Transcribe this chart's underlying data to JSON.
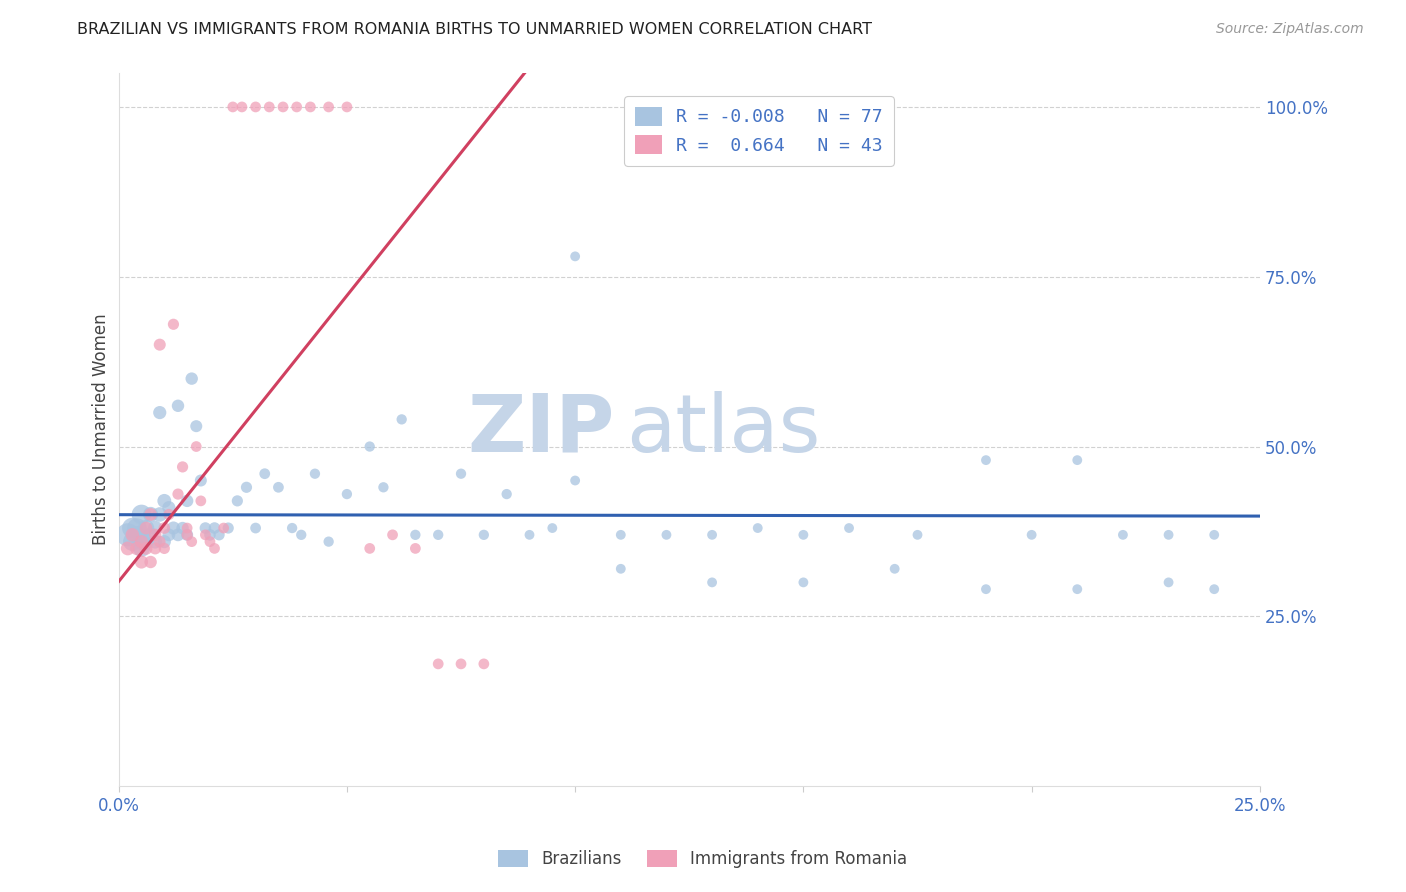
{
  "title": "BRAZILIAN VS IMMIGRANTS FROM ROMANIA BIRTHS TO UNMARRIED WOMEN CORRELATION CHART",
  "source": "Source: ZipAtlas.com",
  "ylabel": "Births to Unmarried Women",
  "xlim": [
    0.0,
    0.25
  ],
  "ylim": [
    0.0,
    1.05
  ],
  "y_ticks": [
    0.25,
    0.5,
    0.75,
    1.0
  ],
  "x_ticks": [
    0.0,
    0.05,
    0.1,
    0.15,
    0.2,
    0.25
  ],
  "legend_line1": "R = -0.008   N = 77",
  "legend_line2": "R =  0.664   N = 43",
  "blue_color": "#a8c4e0",
  "pink_color": "#f0a0b8",
  "line_blue_color": "#3060b0",
  "line_pink_color": "#d04060",
  "watermark_zip_color": "#c5d5e8",
  "watermark_atlas_color": "#c5d5e8",
  "tick_color": "#4472c4",
  "grid_color": "#cccccc",
  "title_color": "#222222",
  "ylabel_color": "#444444",
  "source_color": "#999999",
  "brazil_label": "Brazilians",
  "romania_label": "Immigrants from Romania",
  "brazil_N": 77,
  "romania_N": 43,
  "brazil_R": -0.008,
  "romania_R": 0.664,
  "brazil_x": [
    0.002,
    0.003,
    0.003,
    0.004,
    0.004,
    0.005,
    0.005,
    0.005,
    0.006,
    0.006,
    0.007,
    0.007,
    0.008,
    0.008,
    0.009,
    0.009,
    0.01,
    0.01,
    0.011,
    0.011,
    0.012,
    0.013,
    0.013,
    0.014,
    0.015,
    0.015,
    0.016,
    0.017,
    0.018,
    0.019,
    0.02,
    0.021,
    0.022,
    0.024,
    0.026,
    0.028,
    0.03,
    0.032,
    0.035,
    0.038,
    0.04,
    0.043,
    0.046,
    0.05,
    0.055,
    0.058,
    0.062,
    0.065,
    0.07,
    0.075,
    0.08,
    0.085,
    0.09,
    0.095,
    0.1,
    0.11,
    0.12,
    0.13,
    0.14,
    0.15,
    0.16,
    0.175,
    0.19,
    0.2,
    0.21,
    0.22,
    0.23,
    0.24,
    0.1,
    0.11,
    0.13,
    0.15,
    0.17,
    0.19,
    0.21,
    0.23,
    0.24
  ],
  "brazil_y": [
    0.37,
    0.38,
    0.36,
    0.38,
    0.37,
    0.4,
    0.36,
    0.35,
    0.38,
    0.36,
    0.4,
    0.37,
    0.38,
    0.36,
    0.4,
    0.55,
    0.42,
    0.36,
    0.41,
    0.37,
    0.38,
    0.37,
    0.56,
    0.38,
    0.42,
    0.37,
    0.6,
    0.53,
    0.45,
    0.38,
    0.37,
    0.38,
    0.37,
    0.38,
    0.42,
    0.44,
    0.38,
    0.46,
    0.44,
    0.38,
    0.37,
    0.46,
    0.36,
    0.43,
    0.5,
    0.44,
    0.54,
    0.37,
    0.37,
    0.46,
    0.37,
    0.43,
    0.37,
    0.38,
    0.78,
    0.37,
    0.37,
    0.37,
    0.38,
    0.37,
    0.38,
    0.37,
    0.48,
    0.37,
    0.48,
    0.37,
    0.37,
    0.37,
    0.45,
    0.32,
    0.3,
    0.3,
    0.32,
    0.29,
    0.29,
    0.3,
    0.29
  ],
  "brazil_sizes": [
    280,
    220,
    180,
    200,
    160,
    200,
    160,
    150,
    140,
    130,
    120,
    110,
    110,
    100,
    110,
    90,
    100,
    90,
    90,
    85,
    90,
    85,
    80,
    80,
    80,
    75,
    80,
    75,
    75,
    70,
    70,
    70,
    65,
    65,
    65,
    65,
    60,
    60,
    60,
    55,
    55,
    55,
    55,
    55,
    55,
    55,
    55,
    55,
    55,
    55,
    55,
    55,
    50,
    50,
    50,
    50,
    50,
    50,
    50,
    50,
    50,
    50,
    50,
    50,
    50,
    50,
    50,
    50,
    50,
    50,
    50,
    50,
    50,
    50,
    50,
    50,
    50
  ],
  "romania_x": [
    0.002,
    0.003,
    0.004,
    0.005,
    0.005,
    0.006,
    0.006,
    0.007,
    0.007,
    0.008,
    0.008,
    0.009,
    0.009,
    0.01,
    0.01,
    0.011,
    0.012,
    0.013,
    0.014,
    0.015,
    0.015,
    0.016,
    0.017,
    0.018,
    0.019,
    0.02,
    0.021,
    0.023,
    0.025,
    0.027,
    0.03,
    0.033,
    0.036,
    0.039,
    0.042,
    0.046,
    0.05,
    0.055,
    0.06,
    0.065,
    0.07,
    0.075,
    0.08
  ],
  "romania_y": [
    0.35,
    0.37,
    0.35,
    0.36,
    0.33,
    0.38,
    0.35,
    0.4,
    0.33,
    0.37,
    0.35,
    0.65,
    0.36,
    0.38,
    0.35,
    0.4,
    0.68,
    0.43,
    0.47,
    0.37,
    0.38,
    0.36,
    0.5,
    0.42,
    0.37,
    0.36,
    0.35,
    0.38,
    1.0,
    1.0,
    1.0,
    1.0,
    1.0,
    1.0,
    1.0,
    1.0,
    1.0,
    0.35,
    0.37,
    0.35,
    0.18,
    0.18,
    0.18
  ],
  "romania_sizes": [
    100,
    95,
    95,
    90,
    90,
    85,
    85,
    85,
    80,
    80,
    75,
    75,
    70,
    70,
    65,
    65,
    65,
    65,
    65,
    65,
    60,
    60,
    60,
    60,
    60,
    60,
    60,
    60,
    60,
    60,
    60,
    60,
    60,
    60,
    60,
    60,
    60,
    60,
    60,
    60,
    60,
    60,
    60
  ]
}
